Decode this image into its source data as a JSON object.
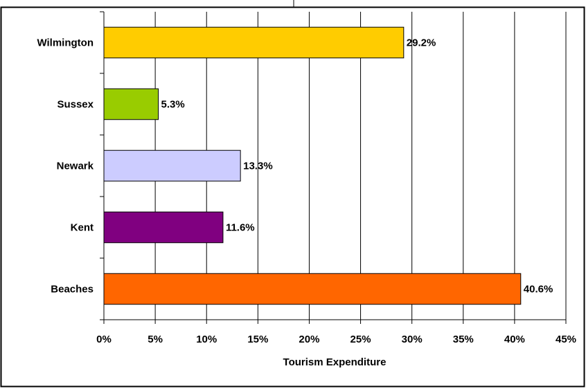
{
  "chart_data": {
    "type": "bar",
    "orientation": "horizontal",
    "categories": [
      "Wilmington",
      "Sussex",
      "Newark",
      "Kent",
      "Beaches"
    ],
    "values": [
      29.2,
      5.3,
      13.3,
      11.6,
      40.6
    ],
    "value_labels": [
      "29.2%",
      "5.3%",
      "13.3%",
      "11.6%",
      "40.6%"
    ],
    "colors": [
      "#ffcc00",
      "#99cc00",
      "#ccccff",
      "#800080",
      "#ff6600"
    ],
    "title": "",
    "xlabel": "Tourism Expenditure",
    "ylabel": "",
    "xlim": [
      0,
      45
    ],
    "x_ticks": [
      0,
      5,
      10,
      15,
      20,
      25,
      30,
      35,
      40,
      45
    ],
    "x_tick_labels": [
      "0%",
      "5%",
      "10%",
      "15%",
      "20%",
      "25%",
      "30%",
      "35%",
      "40%",
      "45%"
    ],
    "grid": "vertical",
    "legend": "none"
  }
}
